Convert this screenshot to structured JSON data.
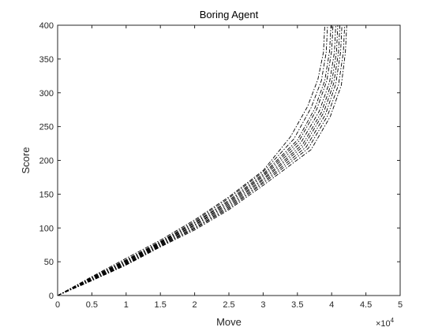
{
  "chart_data": {
    "type": "line",
    "title": "Boring Agent",
    "xlabel": "Move",
    "ylabel": "Score",
    "x_exponent_label": "×10",
    "x_exponent_power": "4",
    "x_scale_factor": 10000,
    "xlim": [
      0,
      50000
    ],
    "ylim": [
      0,
      400
    ],
    "xticks": [
      0,
      5000,
      10000,
      15000,
      20000,
      25000,
      30000,
      35000,
      40000,
      45000,
      50000
    ],
    "xtick_labels": [
      "0",
      "0.5",
      "1",
      "1.5",
      "2",
      "2.5",
      "3",
      "3.5",
      "4",
      "4.5",
      "5"
    ],
    "yticks": [
      0,
      50,
      100,
      150,
      200,
      250,
      300,
      350,
      400
    ],
    "ytick_labels": [
      "0",
      "50",
      "100",
      "150",
      "200",
      "250",
      "300",
      "350",
      "400"
    ],
    "grid": false,
    "line_style": "dash-dot",
    "line_color": "#000000",
    "series": [
      {
        "x": [
          0,
          5000,
          10000,
          15000,
          20000,
          25000,
          30000,
          34000,
          36500,
          38000,
          38800,
          39000
        ],
        "y": [
          0,
          28,
          55,
          82,
          112,
          146,
          185,
          235,
          280,
          320,
          360,
          400
        ]
      },
      {
        "x": [
          0,
          5000,
          10000,
          15000,
          20000,
          25000,
          30000,
          34500,
          37000,
          38500,
          39200,
          39400
        ],
        "y": [
          0,
          27,
          53,
          80,
          110,
          144,
          183,
          232,
          278,
          318,
          360,
          400
        ]
      },
      {
        "x": [
          0,
          5000,
          10000,
          15000,
          20000,
          25000,
          30000,
          35000,
          37500,
          39000,
          39700,
          39900
        ],
        "y": [
          0,
          26,
          52,
          79,
          108,
          141,
          180,
          230,
          276,
          318,
          362,
          400
        ]
      },
      {
        "x": [
          0,
          5000,
          10000,
          15000,
          20000,
          25000,
          30000,
          35200,
          37800,
          39300,
          40000,
          40200
        ],
        "y": [
          0,
          26,
          51,
          78,
          107,
          139,
          178,
          228,
          275,
          318,
          362,
          400
        ]
      },
      {
        "x": [
          0,
          5000,
          10000,
          15000,
          20000,
          25000,
          30000,
          35500,
          38200,
          39700,
          40400,
          40600
        ],
        "y": [
          0,
          25,
          50,
          77,
          105,
          137,
          176,
          226,
          273,
          316,
          360,
          400
        ]
      },
      {
        "x": [
          0,
          5000,
          10000,
          15000,
          20000,
          25000,
          30000,
          35800,
          38500,
          40000,
          40700,
          40900
        ],
        "y": [
          0,
          24,
          49,
          76,
          104,
          135,
          173,
          224,
          271,
          315,
          360,
          400
        ]
      },
      {
        "x": [
          0,
          5000,
          10000,
          15000,
          20000,
          25000,
          30000,
          36000,
          38800,
          40300,
          41000,
          41200
        ],
        "y": [
          0,
          24,
          48,
          75,
          102,
          133,
          171,
          222,
          270,
          314,
          360,
          400
        ]
      },
      {
        "x": [
          0,
          5000,
          10000,
          15000,
          20000,
          25000,
          30000,
          36300,
          39100,
          40600,
          41300,
          41500
        ],
        "y": [
          0,
          23,
          47,
          74,
          100,
          131,
          168,
          220,
          268,
          313,
          360,
          400
        ]
      },
      {
        "x": [
          0,
          5000,
          10000,
          15000,
          20000,
          25000,
          30000,
          36600,
          39400,
          41000,
          41700,
          41900
        ],
        "y": [
          0,
          22,
          46,
          73,
          99,
          129,
          166,
          218,
          266,
          312,
          360,
          400
        ]
      },
      {
        "x": [
          0,
          5000,
          10000,
          15000,
          20000,
          25000,
          30000,
          37000,
          39800,
          41400,
          42000,
          42200
        ],
        "y": [
          0,
          22,
          45,
          72,
          97,
          127,
          163,
          216,
          265,
          311,
          360,
          400
        ]
      }
    ]
  }
}
